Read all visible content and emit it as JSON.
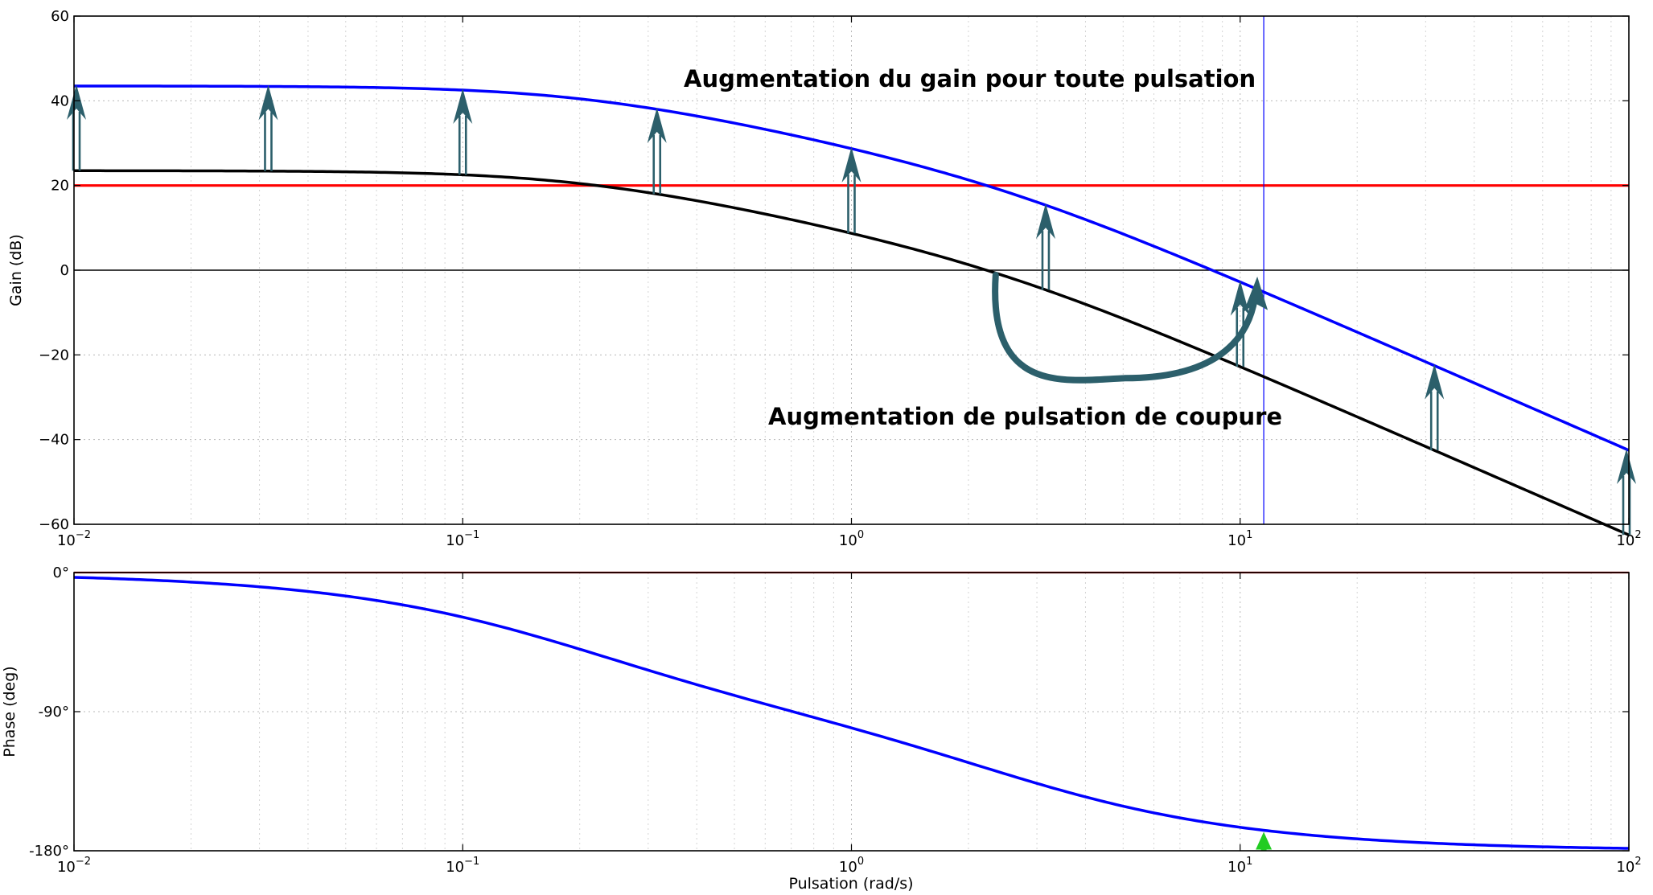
{
  "colors": {
    "plant": "#000000",
    "corrected": "#0000ff",
    "gain_reference": "#ff0000",
    "phase_reference": "#c00000",
    "arrows": "#2c5f6b",
    "marker": "#22cc22"
  },
  "chart_data": [
    {
      "type": "line",
      "panel": "gain",
      "ylabel": "Gain (dB)",
      "xscale": "log",
      "xlim": [
        0.01,
        100
      ],
      "ylim": [
        -60,
        60
      ],
      "yticks": [
        -60,
        -40,
        -20,
        0,
        20,
        40,
        60
      ],
      "ytick_labels": [
        "−60",
        "−40",
        "−20",
        "0",
        "20",
        "40",
        "60"
      ],
      "grid": true,
      "xtick_labels": [
        {
          "base": "10",
          "exp": "−2"
        },
        {
          "base": "10",
          "exp": "−1"
        },
        {
          "base": "10",
          "exp": "0"
        },
        {
          "base": "10",
          "exp": "1"
        },
        {
          "base": "10",
          "exp": "2"
        }
      ],
      "model": {
        "K_dB": [
          23.5,
          43.5
        ],
        "poles": [
          0.2,
          2.5
        ]
      },
      "series": [
        {
          "x": [
            0.01,
            0.0316,
            0.1,
            0.316,
            1,
            3.16,
            10,
            31.6,
            100
          ],
          "values": [
            23.4,
            23.2,
            22.5,
            17.0,
            7.5,
            -4.5,
            -17.5,
            -36.5,
            -56.5
          ]
        },
        {
          "x": [
            0.01,
            0.0316,
            0.1,
            0.316,
            1,
            3.16,
            10,
            31.6,
            100
          ],
          "values": [
            43.4,
            43.2,
            42.5,
            37.0,
            27.5,
            15.5,
            2.5,
            -16.5,
            -36.5
          ]
        }
      ],
      "reference_lines": {
        "gain_dB": 20,
        "zero_dB": 0,
        "crossover_x": 11.5
      },
      "gain_arrows_x": [
        0.01,
        0.0316,
        0.1,
        0.316,
        1,
        3.16,
        10,
        31.6,
        100
      ],
      "annotations": [
        {
          "text": "Augmentation du gain pour toute pulsation"
        },
        {
          "text": "Augmentation de pulsation de coupure"
        }
      ]
    },
    {
      "type": "line",
      "panel": "phase",
      "ylabel": "Phase (deg)",
      "xlabel": "Pulsation (rad/s)",
      "xscale": "log",
      "xlim": [
        0.01,
        100
      ],
      "ylim": [
        -180,
        0
      ],
      "yticks": [
        -180,
        -90,
        0
      ],
      "ytick_labels": [
        "-180°",
        "-90°",
        "0°"
      ],
      "grid": true,
      "xtick_labels": [
        {
          "base": "10",
          "exp": "−2"
        },
        {
          "base": "10",
          "exp": "−1"
        },
        {
          "base": "10",
          "exp": "0"
        },
        {
          "base": "10",
          "exp": "1"
        },
        {
          "base": "10",
          "exp": "2"
        }
      ],
      "series": [
        {
          "x": [
            0.01,
            0.0316,
            0.1,
            0.316,
            1,
            3.16,
            10,
            31.6,
            100
          ],
          "values": [
            -3.1,
            -9.6,
            -28.9,
            -65.5,
            -90,
            -119.8,
            -155.5,
            -175.1,
            -178.3
          ]
        }
      ],
      "reference_lines": {
        "phase_deg": 0
      },
      "marker_x": 11.5
    }
  ]
}
